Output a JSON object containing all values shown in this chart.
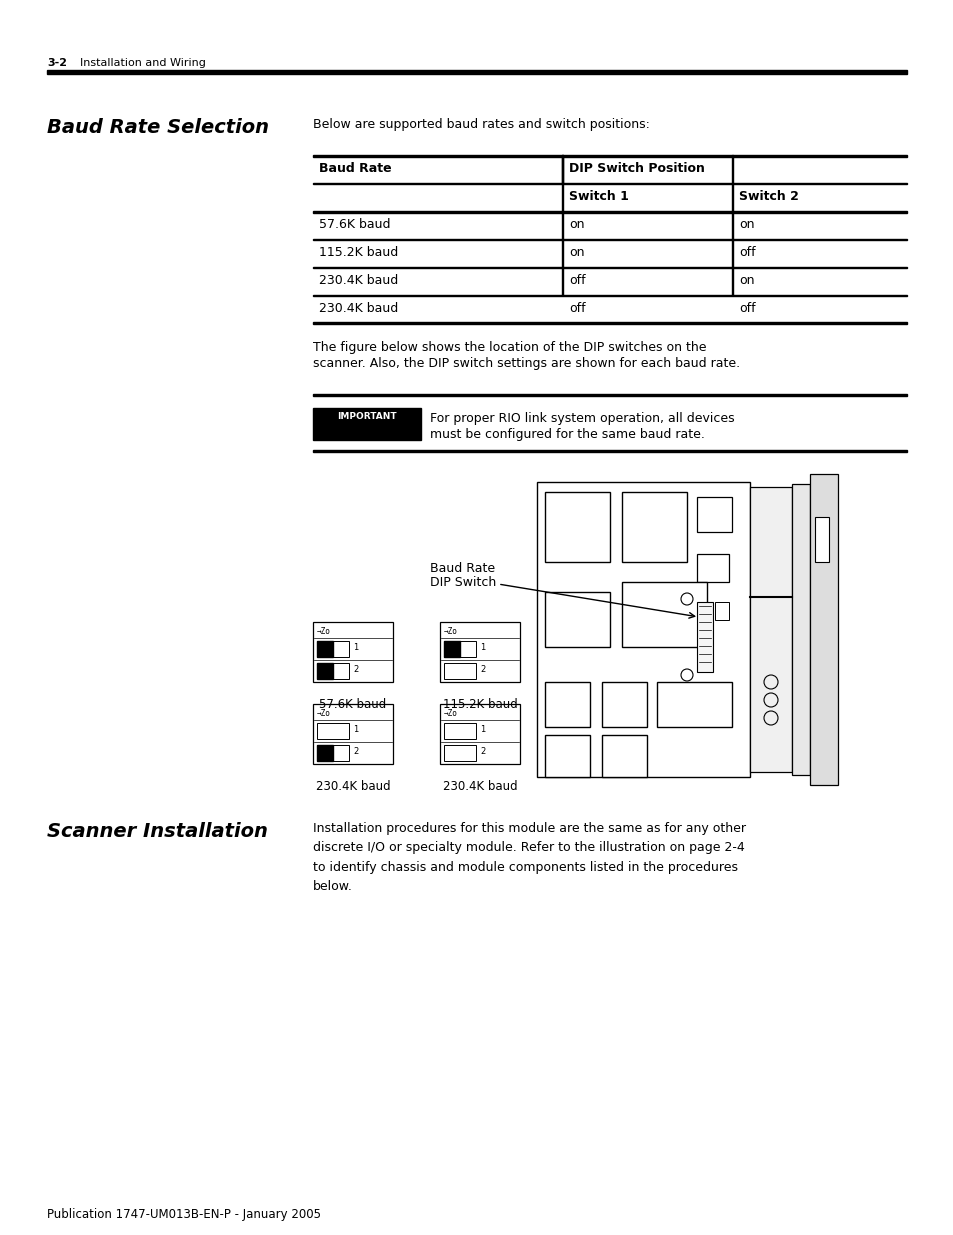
{
  "page_header_num": "3-2",
  "page_header_text": "Installation and Wiring",
  "section1_title": "Baud Rate Selection",
  "section1_intro": "Below are supported baud rates and switch positions:",
  "table_col0_header": "Baud Rate",
  "table_col1_header": "DIP Switch Position",
  "table_sub1": "Switch 1",
  "table_sub2": "Switch 2",
  "table_rows": [
    [
      "57.6K baud",
      "on",
      "on"
    ],
    [
      "115.2K baud",
      "on",
      "off"
    ],
    [
      "230.4K baud",
      "off",
      "on"
    ],
    [
      "230.4K baud",
      "off",
      "off"
    ]
  ],
  "para1_line1": "The figure below shows the location of the DIP switches on the",
  "para1_line2": "scanner. Also, the DIP switch settings are shown for each baud rate.",
  "important_label": "IMPORTANT",
  "important_line1": "For proper RIO link system operation, all devices",
  "important_line2": "must be configured for the same baud rate.",
  "diagram_label_line1": "Baud Rate",
  "diagram_label_line2": "DIP Switch",
  "baud_labels": [
    "57.6K baud",
    "115.2K baud",
    "230.4K baud",
    "230.4K baud"
  ],
  "sw_on_off": [
    [
      true,
      true
    ],
    [
      true,
      false
    ],
    [
      false,
      true
    ],
    [
      false,
      false
    ]
  ],
  "section2_title": "Scanner Installation",
  "section2_text": "Installation procedures for this module are the same as for any other\ndiscrete I/O or specialty module. Refer to the illustration on page 2-4\nto identify chassis and module components listed in the procedures\nbelow.",
  "footer_text": "Publication 1747-UM013B-EN-P - January 2005",
  "bg_color": "#ffffff",
  "text_color": "#000000"
}
